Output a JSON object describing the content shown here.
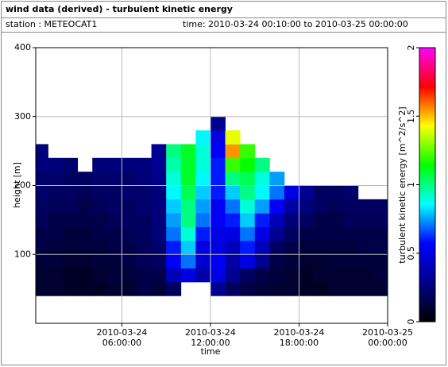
{
  "chart_data": {
    "type": "heatmap",
    "title": "wind data (derived) - turbulent kinetic energy",
    "station": "station : METEOCAT1",
    "subtitle": "time: 2010-03-24 00:10:00 to 2010-03-25 00:00:00",
    "xlabel": "time",
    "ylabel": "height [m]",
    "colorbar_label": "turbulent kinetic energy [m^2/s^2]",
    "xlim": [
      0.1667,
      24
    ],
    "ylim": [
      0,
      400
    ],
    "xticks": [
      {
        "value": 6,
        "label": "2010-03-24\n06:00:00"
      },
      {
        "value": 12,
        "label": "2010-03-24\n12:00:00"
      },
      {
        "value": 18,
        "label": "2010-03-24\n18:00:00"
      },
      {
        "value": 24,
        "label": "2010-03-25\n00:00:00"
      }
    ],
    "yticks": [
      100,
      200,
      300,
      400
    ],
    "clim": [
      0,
      2
    ],
    "colorbar_ticks": [
      0,
      0.5,
      1,
      1.5,
      2
    ],
    "colormap": [
      "#000000",
      "#00008b",
      "#0000ff",
      "#00ffff",
      "#00ff00",
      "#ffff00",
      "#ff0000",
      "#ff00ff"
    ],
    "grid": true,
    "x_bins": [
      0.1667,
      1,
      2,
      3,
      4,
      5,
      6,
      7,
      8,
      9,
      10,
      11,
      12,
      13,
      14,
      15,
      16,
      17,
      18,
      19,
      20,
      21,
      22,
      23,
      24
    ],
    "y_bins": [
      40,
      60,
      80,
      100,
      120,
      140,
      160,
      180,
      200,
      220,
      240,
      260,
      280,
      300
    ],
    "values": [
      [
        0.1,
        0.1,
        0.08,
        0.08,
        0.08,
        0.1,
        0.1,
        0.15,
        0.12,
        0.2,
        null,
        null,
        0.3,
        0.2,
        0.15,
        0.12,
        0.1,
        0.1,
        0.08,
        0.08,
        0.1,
        0.1,
        0.1,
        0.1
      ],
      [
        0.1,
        0.1,
        0.08,
        0.08,
        0.1,
        0.12,
        0.12,
        0.15,
        0.15,
        0.4,
        0.5,
        0.35,
        0.5,
        0.3,
        0.2,
        0.15,
        0.12,
        0.1,
        0.08,
        0.1,
        0.1,
        0.1,
        0.1,
        0.12
      ],
      [
        0.12,
        0.12,
        0.1,
        0.1,
        0.12,
        0.12,
        0.15,
        0.18,
        0.2,
        0.55,
        0.7,
        0.45,
        0.55,
        0.35,
        0.5,
        0.3,
        0.15,
        0.12,
        0.1,
        0.1,
        0.12,
        0.12,
        0.12,
        0.12
      ],
      [
        0.15,
        0.12,
        0.12,
        0.12,
        0.12,
        0.15,
        0.15,
        0.18,
        0.22,
        0.6,
        0.8,
        0.5,
        0.5,
        0.4,
        0.6,
        0.4,
        0.2,
        0.15,
        0.12,
        0.12,
        0.12,
        0.12,
        0.15,
        0.15
      ],
      [
        0.15,
        0.15,
        0.12,
        0.12,
        0.15,
        0.15,
        0.18,
        0.2,
        0.25,
        0.7,
        0.9,
        0.6,
        0.5,
        0.5,
        0.7,
        0.5,
        0.3,
        0.2,
        0.15,
        0.15,
        0.15,
        0.15,
        0.15,
        0.15
      ],
      [
        0.18,
        0.15,
        0.15,
        0.15,
        0.15,
        0.18,
        0.2,
        0.2,
        0.25,
        0.75,
        1.0,
        0.7,
        0.55,
        0.6,
        0.8,
        0.6,
        0.4,
        0.25,
        0.2,
        0.15,
        0.15,
        0.18,
        0.18,
        0.18
      ],
      [
        0.2,
        0.18,
        0.18,
        0.15,
        0.18,
        0.2,
        0.2,
        0.22,
        0.25,
        0.8,
        1.0,
        0.75,
        0.55,
        0.7,
        0.9,
        0.75,
        0.55,
        0.35,
        0.25,
        0.2,
        0.18,
        0.2,
        0.2,
        0.2
      ],
      [
        0.22,
        0.2,
        0.2,
        0.18,
        0.2,
        0.2,
        0.22,
        0.22,
        0.25,
        0.85,
        1.05,
        0.8,
        0.6,
        0.8,
        1.0,
        0.85,
        0.7,
        0.5,
        0.3,
        0.2,
        0.2,
        0.22,
        null,
        null
      ],
      [
        0.22,
        0.22,
        0.2,
        0.2,
        0.22,
        0.22,
        0.22,
        0.25,
        0.28,
        0.9,
        1.1,
        0.85,
        0.6,
        1.0,
        1.05,
        0.9,
        0.75,
        null,
        null,
        null,
        null,
        null,
        null,
        null
      ],
      [
        0.25,
        0.25,
        0.22,
        null,
        0.25,
        0.25,
        0.25,
        0.25,
        0.3,
        0.95,
        1.1,
        0.9,
        0.6,
        1.2,
        1.15,
        1.0,
        null,
        null,
        null,
        null,
        null,
        null,
        null,
        null
      ],
      [
        0.25,
        null,
        null,
        null,
        null,
        null,
        null,
        null,
        0.3,
        1.0,
        1.1,
        0.9,
        0.55,
        1.55,
        1.2,
        null,
        null,
        null,
        null,
        null,
        null,
        null,
        null,
        null
      ],
      [
        null,
        null,
        null,
        null,
        null,
        null,
        null,
        null,
        null,
        null,
        null,
        0.85,
        0.5,
        1.4,
        null,
        null,
        null,
        null,
        null,
        null,
        null,
        null,
        null,
        null
      ],
      [
        null,
        null,
        null,
        null,
        null,
        null,
        null,
        null,
        null,
        null,
        null,
        null,
        0.3,
        null,
        null,
        null,
        null,
        null,
        null,
        null,
        null,
        null,
        null,
        null
      ]
    ]
  }
}
